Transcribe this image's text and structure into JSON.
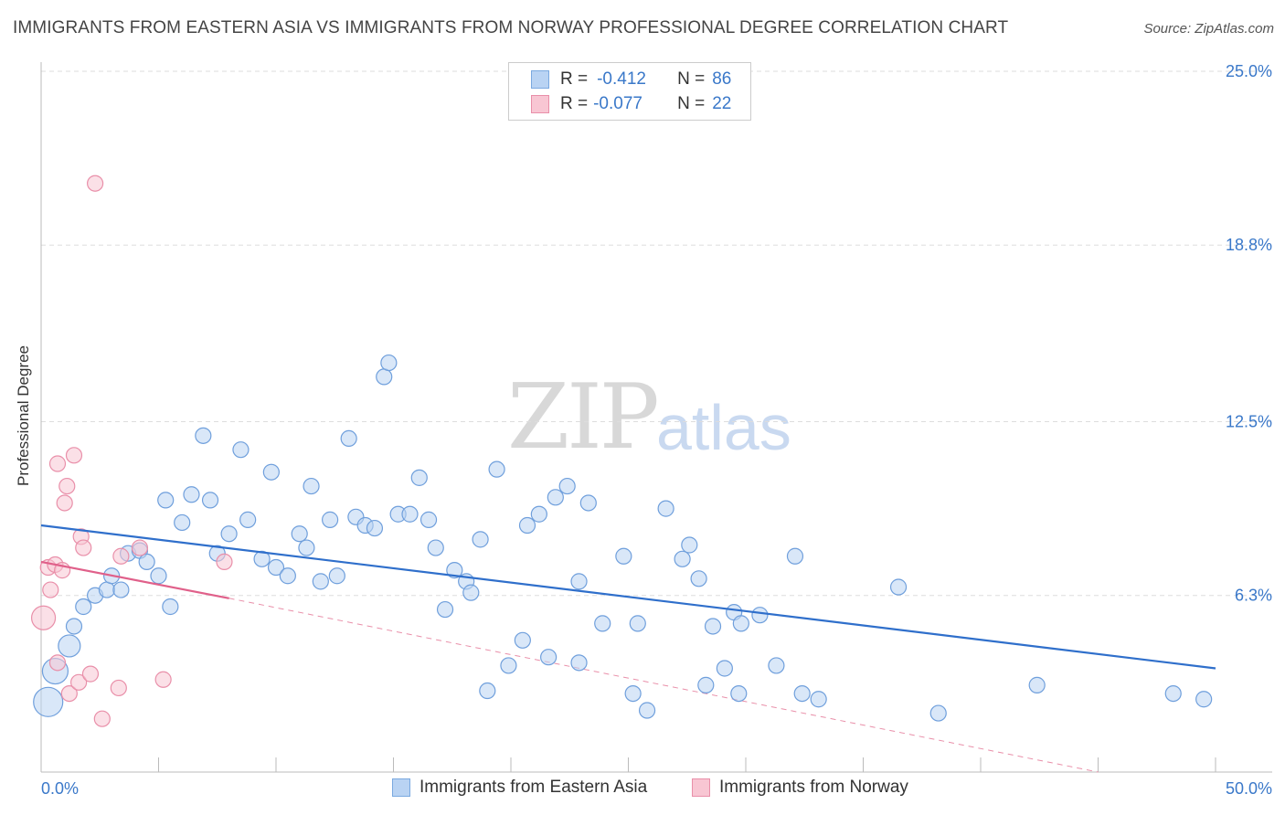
{
  "header": {
    "title": "IMMIGRANTS FROM EASTERN ASIA VS IMMIGRANTS FROM NORWAY PROFESSIONAL DEGREE CORRELATION CHART",
    "source": "Source: ZipAtlas.com"
  },
  "watermark": {
    "zip": "ZIP",
    "atlas": "atlas"
  },
  "legend": {
    "rows": [
      {
        "r_label": "R =",
        "r_value": "-0.412",
        "n_label": "N =",
        "n_value": "86"
      },
      {
        "r_label": "R =",
        "r_value": "-0.077",
        "n_label": "N =",
        "n_value": "22"
      }
    ]
  },
  "colors": {
    "blue_fill": "#b9d3f3",
    "blue_stroke": "#7aa9e0",
    "blue_line": "#2f6fcb",
    "pink_fill": "#f8c6d3",
    "pink_stroke": "#e98fa9",
    "pink_line": "#e0608a",
    "accent_text": "#3a78c9"
  },
  "chart_data": {
    "type": "scatter",
    "title": "IMMIGRANTS FROM EASTERN ASIA VS IMMIGRANTS FROM NORWAY PROFESSIONAL DEGREE CORRELATION CHART",
    "xlabel": "",
    "ylabel": "Professional Degree",
    "xlim": [
      0,
      50
    ],
    "ylim": [
      0,
      25
    ],
    "x_tick_labels": [
      "0.0%",
      "50.0%"
    ],
    "y_ticks": [
      6.3,
      12.5,
      18.8,
      25.0
    ],
    "y_tick_labels": [
      "6.3%",
      "12.5%",
      "18.8%",
      "25.0%"
    ],
    "grid": "horizontal dashed",
    "legend_position": "bottom",
    "series": [
      {
        "name": "Immigrants from Eastern Asia",
        "color": "#b9d3f3",
        "trend": {
          "x": [
            0,
            50
          ],
          "y": [
            8.8,
            3.7
          ]
        },
        "points": [
          [
            0.3,
            2.5
          ],
          [
            0.6,
            3.6
          ],
          [
            1.2,
            4.5
          ],
          [
            1.4,
            5.2
          ],
          [
            1.8,
            5.9
          ],
          [
            2.3,
            6.3
          ],
          [
            2.8,
            6.5
          ],
          [
            3.0,
            7.0
          ],
          [
            3.4,
            6.5
          ],
          [
            3.7,
            7.8
          ],
          [
            4.2,
            7.9
          ],
          [
            4.5,
            7.5
          ],
          [
            5.0,
            7.0
          ],
          [
            5.3,
            9.7
          ],
          [
            5.5,
            5.9
          ],
          [
            6.0,
            8.9
          ],
          [
            6.4,
            9.9
          ],
          [
            6.9,
            12.0
          ],
          [
            7.2,
            9.7
          ],
          [
            7.5,
            7.8
          ],
          [
            8.0,
            8.5
          ],
          [
            8.5,
            11.5
          ],
          [
            8.8,
            9.0
          ],
          [
            9.4,
            7.6
          ],
          [
            9.8,
            10.7
          ],
          [
            10.0,
            7.3
          ],
          [
            10.5,
            7.0
          ],
          [
            11.0,
            8.5
          ],
          [
            11.3,
            8.0
          ],
          [
            11.5,
            10.2
          ],
          [
            11.9,
            6.8
          ],
          [
            12.3,
            9.0
          ],
          [
            12.6,
            7.0
          ],
          [
            13.1,
            11.9
          ],
          [
            13.4,
            9.1
          ],
          [
            13.8,
            8.8
          ],
          [
            14.2,
            8.7
          ],
          [
            14.6,
            14.1
          ],
          [
            14.8,
            14.6
          ],
          [
            15.2,
            9.2
          ],
          [
            15.7,
            9.2
          ],
          [
            16.1,
            10.5
          ],
          [
            16.5,
            9.0
          ],
          [
            16.8,
            8.0
          ],
          [
            17.2,
            5.8
          ],
          [
            17.6,
            7.2
          ],
          [
            18.1,
            6.8
          ],
          [
            18.3,
            6.4
          ],
          [
            18.7,
            8.3
          ],
          [
            19.0,
            2.9
          ],
          [
            19.4,
            10.8
          ],
          [
            19.9,
            3.8
          ],
          [
            20.5,
            4.7
          ],
          [
            20.7,
            8.8
          ],
          [
            21.2,
            9.2
          ],
          [
            21.6,
            4.1
          ],
          [
            21.9,
            9.8
          ],
          [
            22.4,
            10.2
          ],
          [
            22.9,
            3.9
          ],
          [
            22.9,
            6.8
          ],
          [
            23.3,
            9.6
          ],
          [
            23.9,
            5.3
          ],
          [
            24.8,
            7.7
          ],
          [
            25.2,
            2.8
          ],
          [
            25.4,
            5.3
          ],
          [
            25.8,
            2.2
          ],
          [
            26.6,
            9.4
          ],
          [
            27.3,
            7.6
          ],
          [
            27.6,
            8.1
          ],
          [
            28.0,
            6.9
          ],
          [
            28.3,
            3.1
          ],
          [
            28.6,
            5.2
          ],
          [
            29.1,
            3.7
          ],
          [
            29.5,
            5.7
          ],
          [
            29.7,
            2.8
          ],
          [
            29.8,
            5.3
          ],
          [
            30.6,
            5.6
          ],
          [
            31.3,
            3.8
          ],
          [
            32.1,
            7.7
          ],
          [
            32.4,
            2.8
          ],
          [
            33.1,
            2.6
          ],
          [
            36.5,
            6.6
          ],
          [
            38.2,
            2.1
          ],
          [
            42.4,
            3.1
          ],
          [
            48.2,
            2.8
          ],
          [
            49.5,
            2.6
          ]
        ]
      },
      {
        "name": "Immigrants from Norway",
        "color": "#f8c6d3",
        "trend": {
          "x": [
            0,
            8
          ],
          "y": [
            7.5,
            6.2
          ]
        },
        "trend_extension": {
          "x": [
            8,
            45
          ],
          "y": [
            6.2,
            0
          ]
        },
        "points": [
          [
            0.1,
            5.5
          ],
          [
            0.3,
            7.3
          ],
          [
            0.4,
            6.5
          ],
          [
            0.6,
            7.4
          ],
          [
            0.7,
            3.9
          ],
          [
            0.7,
            11.0
          ],
          [
            0.9,
            7.2
          ],
          [
            1.0,
            9.6
          ],
          [
            1.1,
            10.2
          ],
          [
            1.2,
            2.8
          ],
          [
            1.4,
            11.3
          ],
          [
            1.6,
            3.2
          ],
          [
            1.7,
            8.4
          ],
          [
            1.8,
            8.0
          ],
          [
            2.1,
            3.5
          ],
          [
            2.3,
            21.0
          ],
          [
            2.6,
            1.9
          ],
          [
            3.3,
            3.0
          ],
          [
            3.4,
            7.7
          ],
          [
            4.2,
            8.0
          ],
          [
            5.2,
            3.3
          ],
          [
            7.8,
            7.5
          ]
        ]
      }
    ]
  },
  "bottom_legend": {
    "series_a": "Immigrants from Eastern Asia",
    "series_b": "Immigrants from Norway"
  }
}
